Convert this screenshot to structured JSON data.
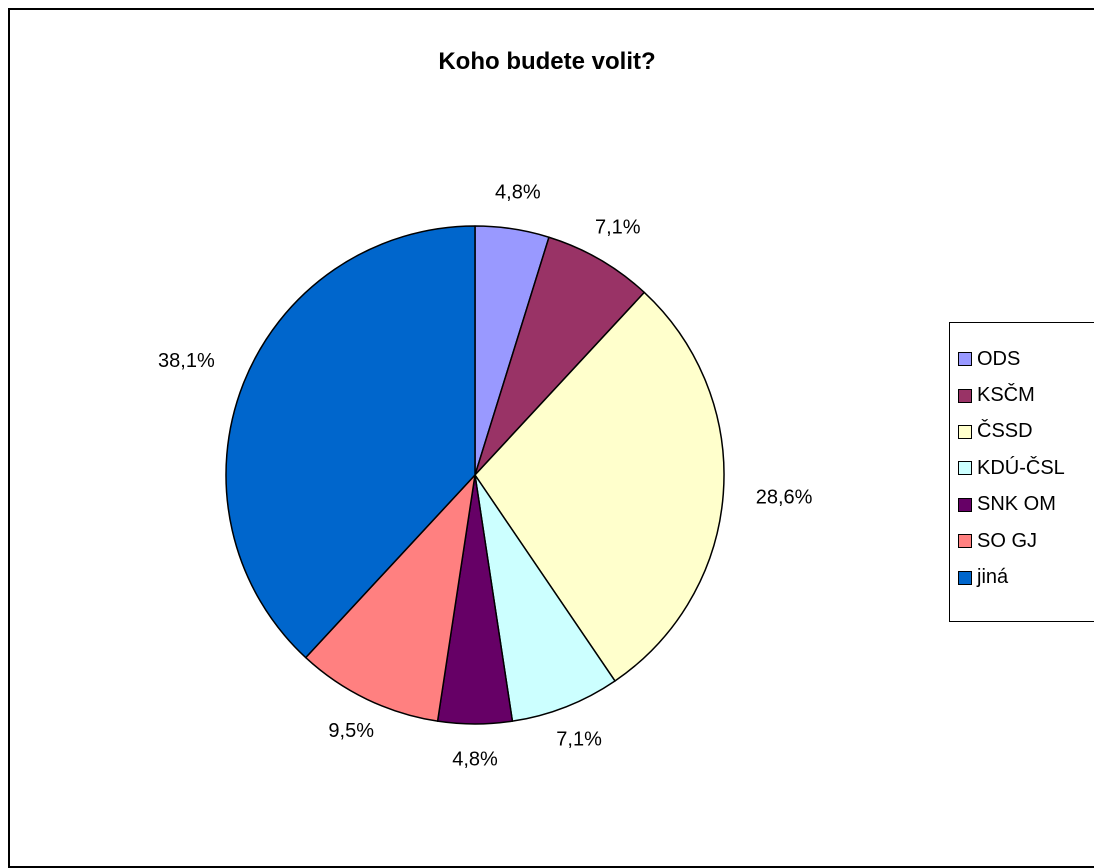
{
  "chart_data": {
    "type": "pie",
    "title": "Koho budete volit?",
    "categories": [
      "ODS",
      "KSČM",
      "ČSSD",
      "KDÚ-ČSL",
      "SNK OM",
      "SO GJ",
      "jiná"
    ],
    "values": [
      4.8,
      7.1,
      28.6,
      7.1,
      4.8,
      9.5,
      38.1
    ],
    "data_labels": [
      "4,8%",
      "7,1%",
      "28,6%",
      "7,1%",
      "4,8%",
      "9,5%",
      "38,1%"
    ],
    "colors": [
      "#9999FF",
      "#993366",
      "#FFFFCC",
      "#CCFFFF",
      "#660066",
      "#FF8080",
      "#0066CC"
    ],
    "legend_position": "right",
    "start_angle": "12 o'clock",
    "direction": "clockwise"
  }
}
